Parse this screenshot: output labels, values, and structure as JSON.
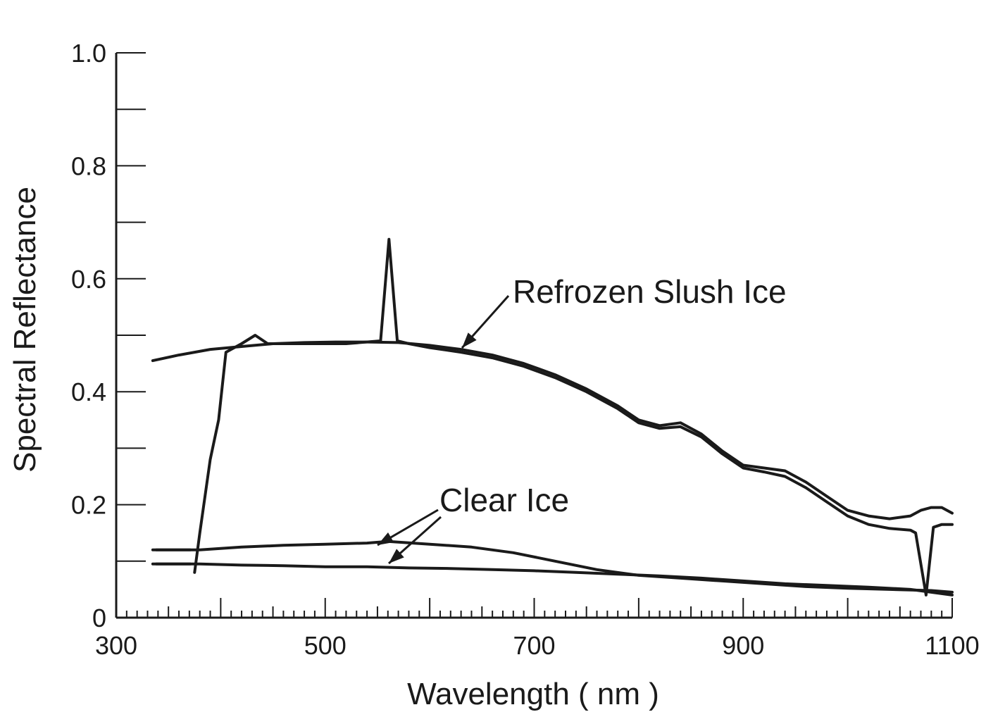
{
  "chart_data": {
    "type": "line",
    "xlabel": "Wavelength ( nm )",
    "ylabel": "Spectral Reflectance",
    "xlim": [
      300,
      1100
    ],
    "ylim": [
      0,
      1.0
    ],
    "x_ticks": [
      "300",
      "500",
      "700",
      "900",
      "1100"
    ],
    "y_ticks": [
      "0",
      "0.2",
      "0.4",
      "0.6",
      "0.8",
      "1.0"
    ],
    "grid": false,
    "annotations": [
      {
        "text": "Refrozen Slush Ice"
      },
      {
        "text": "Clear Ice"
      }
    ],
    "series": [
      {
        "x": [
          335,
          360,
          390,
          420,
          450,
          480,
          510,
          540,
          570,
          600,
          630,
          660,
          690,
          720,
          750,
          780,
          800,
          820,
          840,
          860,
          880,
          900,
          920,
          940,
          960,
          980,
          1000,
          1020,
          1040,
          1060,
          1070,
          1080,
          1090,
          1100
        ],
        "y": [
          0.455,
          0.465,
          0.475,
          0.48,
          0.485,
          0.487,
          0.488,
          0.488,
          0.487,
          0.482,
          0.475,
          0.465,
          0.45,
          0.43,
          0.405,
          0.375,
          0.35,
          0.34,
          0.345,
          0.325,
          0.295,
          0.27,
          0.265,
          0.26,
          0.24,
          0.215,
          0.19,
          0.18,
          0.175,
          0.18,
          0.19,
          0.195,
          0.195,
          0.185
        ]
      },
      {
        "x": [
          375,
          380,
          390,
          398,
          405,
          420,
          433,
          445,
          480,
          520,
          553,
          561,
          569,
          580,
          600,
          630,
          660,
          690,
          720,
          750,
          780,
          800,
          820,
          840,
          860,
          880,
          900,
          920,
          940,
          960,
          980,
          1000,
          1020,
          1040,
          1060,
          1065,
          1075,
          1082,
          1090,
          1100
        ],
        "y": [
          0.08,
          0.15,
          0.28,
          0.35,
          0.47,
          0.485,
          0.5,
          0.485,
          0.485,
          0.485,
          0.49,
          0.67,
          0.49,
          0.485,
          0.478,
          0.47,
          0.46,
          0.445,
          0.425,
          0.4,
          0.37,
          0.345,
          0.335,
          0.338,
          0.32,
          0.29,
          0.265,
          0.258,
          0.25,
          0.23,
          0.205,
          0.18,
          0.165,
          0.158,
          0.155,
          0.15,
          0.04,
          0.16,
          0.165,
          0.165
        ]
      },
      {
        "x": [
          335,
          380,
          420,
          460,
          500,
          540,
          560,
          600,
          640,
          680,
          720,
          760,
          800,
          840,
          880,
          920,
          960,
          1000,
          1040,
          1080,
          1100
        ],
        "y": [
          0.12,
          0.12,
          0.125,
          0.128,
          0.13,
          0.132,
          0.135,
          0.13,
          0.125,
          0.115,
          0.1,
          0.085,
          0.075,
          0.07,
          0.065,
          0.06,
          0.055,
          0.052,
          0.05,
          0.048,
          0.045
        ]
      },
      {
        "x": [
          335,
          380,
          420,
          460,
          500,
          540,
          580,
          620,
          660,
          700,
          740,
          780,
          820,
          860,
          900,
          940,
          980,
          1020,
          1060,
          1080,
          1100
        ],
        "y": [
          0.095,
          0.095,
          0.093,
          0.092,
          0.09,
          0.09,
          0.088,
          0.087,
          0.085,
          0.083,
          0.08,
          0.077,
          0.074,
          0.07,
          0.065,
          0.06,
          0.057,
          0.054,
          0.05,
          0.045,
          0.04
        ]
      }
    ]
  }
}
